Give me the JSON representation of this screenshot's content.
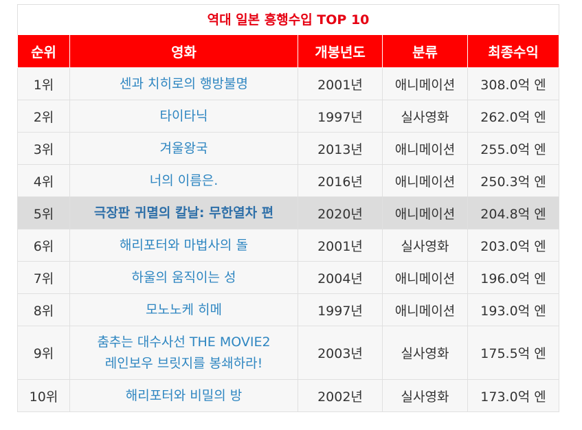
{
  "table": {
    "caption": "역대 일본 흥행수입 TOP 10",
    "headers": [
      "순위",
      "영화",
      "개봉년도",
      "분류",
      "최종수익"
    ],
    "rows": [
      {
        "rank": "1위",
        "title": "센과 치히로의 행방불명",
        "year": "2001년",
        "category": "애니메이션",
        "revenue": "308.0억 엔"
      },
      {
        "rank": "2위",
        "title": "타이타닉",
        "year": "1997년",
        "category": "실사영화",
        "revenue": "262.0억 엔"
      },
      {
        "rank": "3위",
        "title": "겨울왕국",
        "year": "2013년",
        "category": "애니메이션",
        "revenue": "255.0억 엔"
      },
      {
        "rank": "4위",
        "title": "너의 이름은.",
        "year": "2016년",
        "category": "애니메이션",
        "revenue": "250.3억 엔"
      },
      {
        "rank": "5위",
        "title": "극장판 귀멸의 칼날: 무한열차 편",
        "year": "2020년",
        "category": "애니메이션",
        "revenue": "204.8억 엔"
      },
      {
        "rank": "6위",
        "title": "해리포터와 마법사의 돌",
        "year": "2001년",
        "category": "실사영화",
        "revenue": "203.0억 엔"
      },
      {
        "rank": "7위",
        "title": "하울의 움직이는 성",
        "year": "2004년",
        "category": "애니메이션",
        "revenue": "196.0억 엔"
      },
      {
        "rank": "8위",
        "title": "모노노케 히메",
        "year": "1997년",
        "category": "애니메이션",
        "revenue": "193.0억 엔"
      },
      {
        "rank": "9위",
        "title": "춤추는 대수사선 THE MOVIE2",
        "title_line2": "레인보우 브릿지를 봉쇄하라!",
        "year": "2003년",
        "category": "실사영화",
        "revenue": "175.5억 엔"
      },
      {
        "rank": "10위",
        "title": "해리포터와 비밀의 방",
        "year": "2002년",
        "category": "실사영화",
        "revenue": "173.0억 엔"
      }
    ],
    "colors": {
      "caption": "#e60012",
      "header_bg": "#ff0000",
      "link": "#2e86c1",
      "row_bg": "#f7f7f7",
      "highlight_bg": "#dcdcdc"
    }
  }
}
